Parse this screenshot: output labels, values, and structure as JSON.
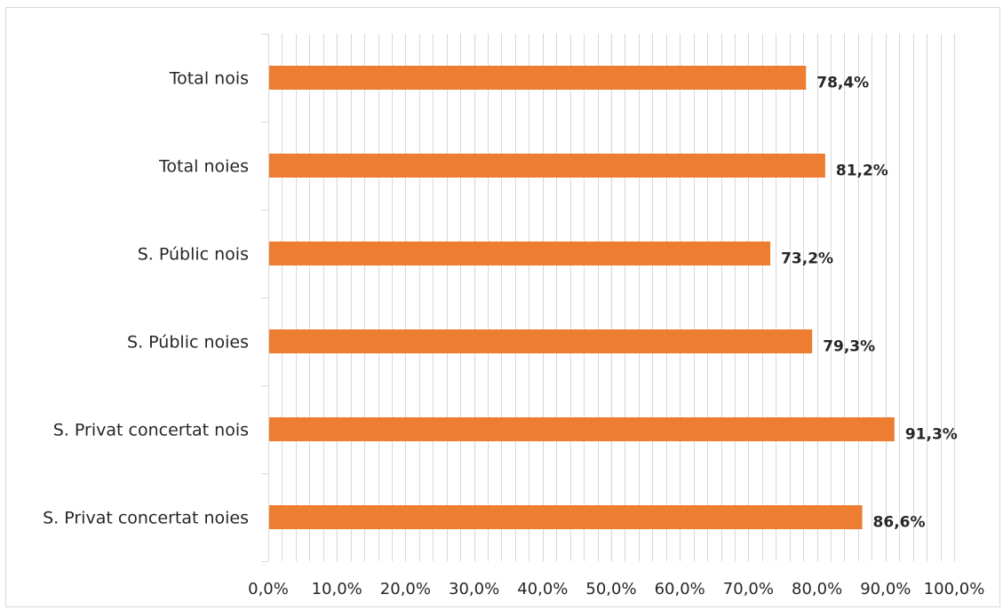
{
  "chart_data": {
    "type": "bar",
    "orientation": "horizontal",
    "categories": [
      "Total nois",
      "Total noies",
      "S. Públic nois",
      "S. Públic noies",
      "S. Privat concertat nois",
      "S. Privat concertat noies"
    ],
    "values": [
      78.4,
      81.2,
      73.2,
      79.3,
      91.3,
      86.6
    ],
    "value_labels": [
      "78,4%",
      "81,2%",
      "73,2%",
      "79,3%",
      "91,3%",
      "86,6%"
    ],
    "x_ticks": [
      0,
      10,
      20,
      30,
      40,
      50,
      60,
      70,
      80,
      90,
      100
    ],
    "x_tick_labels": [
      "0,0%",
      "10,0%",
      "20,0%",
      "30,0%",
      "40,0%",
      "50,0%",
      "60,0%",
      "70,0%",
      "80,0%",
      "90,0%",
      "100,0%"
    ],
    "xlim": [
      0,
      100
    ],
    "title": "",
    "xlabel": "",
    "ylabel": "",
    "grid": true,
    "legend": false,
    "colors": {
      "bar": "#ED7D31",
      "grid": "#d9d9d9",
      "text": "#262626"
    }
  }
}
